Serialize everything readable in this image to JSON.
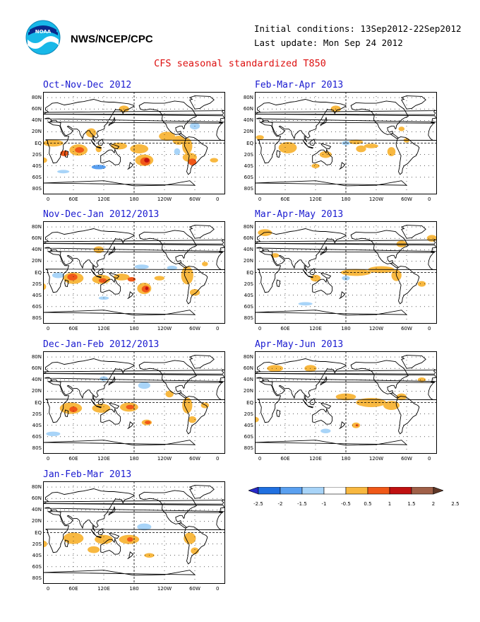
{
  "header": {
    "agency": "NWS/NCEP/CPC",
    "initial_conditions": "Initial conditions: 13Sep2012-22Sep2012",
    "last_update": "Last update: Mon Sep 24 2012",
    "title": "CFS seasonal standardized T850"
  },
  "axes": {
    "lat_labels": [
      "80N",
      "60N",
      "40N",
      "20N",
      "EQ",
      "20S",
      "40S",
      "60S",
      "80S"
    ],
    "lon_labels": [
      "0",
      "60E",
      "120E",
      "180",
      "120W",
      "60W",
      "0"
    ]
  },
  "panels": [
    {
      "title": "Oct-Nov-Dec 2012"
    },
    {
      "title": "Nov-Dec-Jan 2012/2013"
    },
    {
      "title": "Dec-Jan-Feb 2012/2013"
    },
    {
      "title": "Jan-Feb-Mar 2013"
    },
    {
      "title": "Feb-Mar-Apr 2013"
    },
    {
      "title": "Mar-Apr-May 2013"
    },
    {
      "title": "Apr-May-Jun 2013"
    }
  ],
  "legend": {
    "labels": [
      "-2.5",
      "-2",
      "-1.5",
      "-1",
      "-0.5",
      "0.5",
      "1",
      "1.5",
      "2",
      "2.5"
    ],
    "colors": [
      "#2828c8",
      "#2070e0",
      "#5aa0f0",
      "#a8d4f8",
      "#ffffff",
      "#f8b840",
      "#f05818",
      "#c01010",
      "#a06048",
      "#603828"
    ]
  },
  "colors": {
    "title": "#1a1ad0",
    "main_title": "#dd1010",
    "warm1": "#f8b840",
    "warm2": "#f05818",
    "warm3": "#c01010",
    "cool1": "#a8d4f8",
    "cool2": "#5aa0f0"
  }
}
